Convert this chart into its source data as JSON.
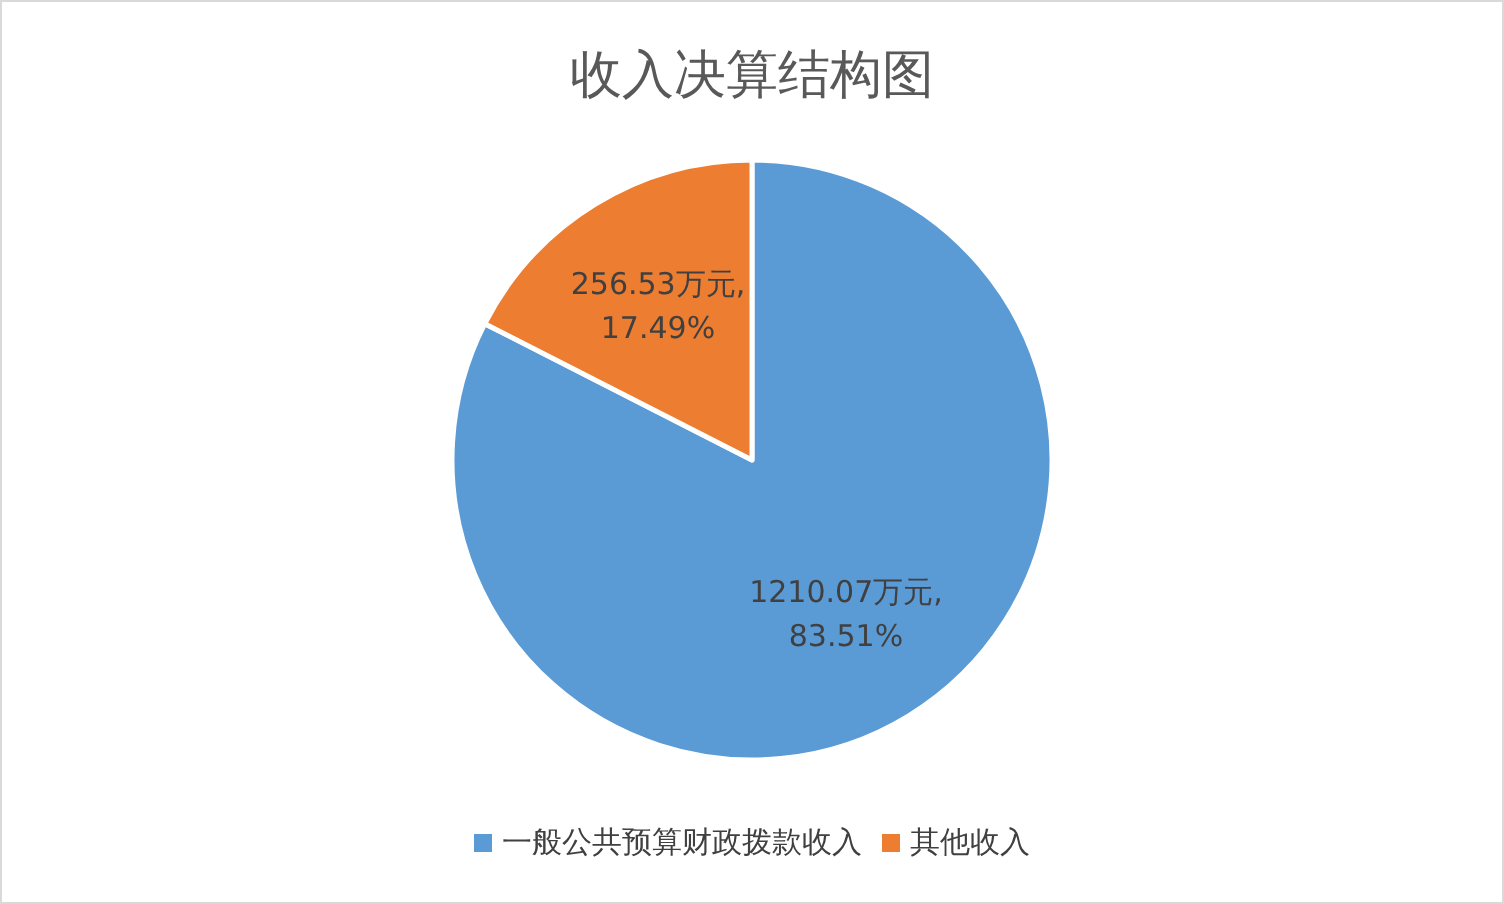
{
  "chart_data": {
    "type": "pie",
    "title": "收入决算结构图",
    "categories": [
      "一般公共预算财政拨款收入",
      "其他收入"
    ],
    "values": [
      1210.07,
      256.53
    ],
    "value_labels": [
      "1210.07万元, 83.51%",
      "256.53万元, 17.49%"
    ],
    "colors": [
      "#5b9bd5",
      "#ed7d31"
    ],
    "legend": "bottom"
  }
}
